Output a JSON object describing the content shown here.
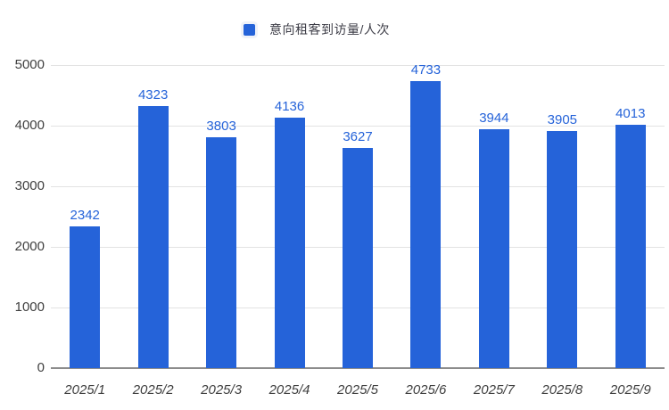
{
  "legend": {
    "label": "意向租客到访量/人次",
    "marker_color": "#2563d9",
    "text_color": "#3c3c46"
  },
  "chart_data": {
    "type": "bar",
    "title": "",
    "series_name": "意向租客到访量/人次",
    "categories": [
      "2025/1",
      "2025/2",
      "2025/3",
      "2025/4",
      "2025/5",
      "2025/6",
      "2025/7",
      "2025/8",
      "2025/9"
    ],
    "values": [
      2342,
      4323,
      3803,
      4136,
      3627,
      4733,
      3944,
      3905,
      4013
    ],
    "xlabel": "",
    "ylabel": "",
    "ylim": [
      0,
      5000
    ],
    "yticks": [
      0,
      1000,
      2000,
      3000,
      4000,
      5000
    ],
    "grid": true,
    "legend_position": "top",
    "bar_color": "#2563d9",
    "value_label_color": "#2563d9",
    "axis_label_color": "#3f3f3f",
    "gridline_color": "#e3e3e3",
    "axis_line_color": "#8c8c8c"
  }
}
